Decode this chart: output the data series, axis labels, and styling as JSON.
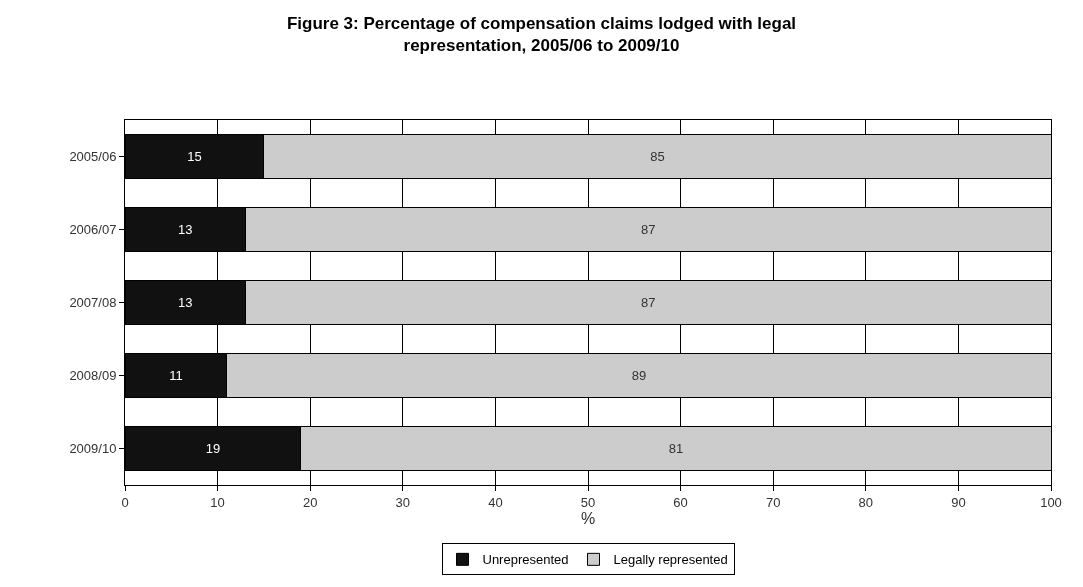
{
  "chart_data": {
    "type": "bar",
    "orientation": "horizontal",
    "stacked": true,
    "title": "Figure 3: Percentage of compensation claims lodged with legal representation, 2005/06 to 2009/10",
    "xlabel": "%",
    "categories": [
      "2005/06",
      "2006/07",
      "2007/08",
      "2008/09",
      "2009/10"
    ],
    "series": [
      {
        "name": "Unrepresented",
        "color": "#111111",
        "values": [
          15,
          13,
          13,
          11,
          19
        ]
      },
      {
        "name": "Legally represented",
        "color": "#cccccc",
        "values": [
          85,
          87,
          87,
          89,
          81
        ]
      }
    ],
    "xlim": [
      0,
      100
    ],
    "xticks": [
      0,
      10,
      20,
      30,
      40,
      50,
      60,
      70,
      80,
      90,
      100
    ],
    "grid": "x",
    "legend": "bottom",
    "data_labels": true
  }
}
